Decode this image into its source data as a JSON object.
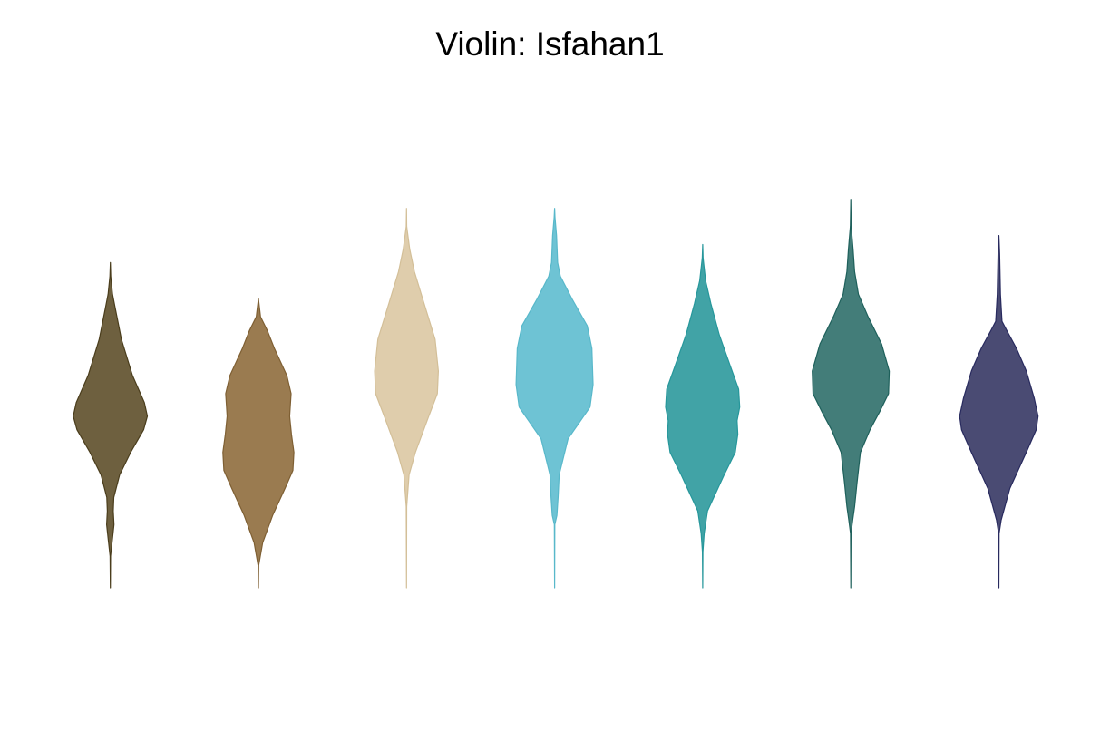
{
  "chart_data": {
    "type": "violin",
    "title": "Violin: Isfahan1",
    "xlabel": "",
    "ylabel": "",
    "axes_visible": false,
    "grid": false,
    "legend": "none",
    "palette_name": "Isfahan1",
    "value_range": [
      0,
      100
    ],
    "series": [
      {
        "color": "#6e603f",
        "stroke": "#4a3d1c",
        "profile": [
          [
            0,
            0
          ],
          [
            7,
            0.006
          ],
          [
            11,
            0.06
          ],
          [
            14,
            0.1
          ],
          [
            17,
            0.08
          ],
          [
            20,
            0.095
          ],
          [
            25,
            0.25
          ],
          [
            30,
            0.55
          ],
          [
            35,
            0.9
          ],
          [
            38,
            1.0
          ],
          [
            41,
            0.92
          ],
          [
            47,
            0.6
          ],
          [
            55,
            0.3
          ],
          [
            62,
            0.13
          ],
          [
            65,
            0.06
          ],
          [
            69,
            0.01
          ],
          [
            72,
            0
          ]
        ],
        "peak_width": 0.5
      },
      {
        "color": "#9a7b50",
        "stroke": "#7e5f33",
        "profile": [
          [
            0,
            0
          ],
          [
            5,
            0.01
          ],
          [
            10,
            0.12
          ],
          [
            16,
            0.4
          ],
          [
            22,
            0.75
          ],
          [
            26,
            0.97
          ],
          [
            30,
            1.0
          ],
          [
            34,
            0.93
          ],
          [
            38,
            0.88
          ],
          [
            43,
            0.92
          ],
          [
            47,
            0.8
          ],
          [
            53,
            0.45
          ],
          [
            57,
            0.25
          ],
          [
            60,
            0.06
          ],
          [
            64,
            0
          ]
        ],
        "peak_width": 0.48
      },
      {
        "color": "#dfcdac",
        "stroke": "#d3bf98",
        "profile": [
          [
            0,
            0
          ],
          [
            18,
            0.006
          ],
          [
            25,
            0.08
          ],
          [
            30,
            0.28
          ],
          [
            38,
            0.7
          ],
          [
            43,
            0.97
          ],
          [
            48,
            1.0
          ],
          [
            55,
            0.9
          ],
          [
            63,
            0.55
          ],
          [
            70,
            0.25
          ],
          [
            75,
            0.1
          ],
          [
            80,
            0.006
          ],
          [
            84,
            0
          ]
        ],
        "peak_width": 0.43
      },
      {
        "color": "#6ec3d4",
        "stroke": "#58b8ca",
        "profile": [
          [
            0,
            0
          ],
          [
            14,
            0.006
          ],
          [
            16,
            0.06
          ],
          [
            20,
            0.09
          ],
          [
            25,
            0.12
          ],
          [
            33,
            0.35
          ],
          [
            40,
            0.92
          ],
          [
            45,
            1.0
          ],
          [
            53,
            0.97
          ],
          [
            58,
            0.85
          ],
          [
            64,
            0.45
          ],
          [
            69,
            0.15
          ],
          [
            72,
            0.08
          ],
          [
            78,
            0.05
          ],
          [
            82,
            0.01
          ],
          [
            84,
            0
          ]
        ],
        "peak_width": 0.52
      },
      {
        "color": "#41a3a6",
        "stroke": "#26979b",
        "profile": [
          [
            0,
            0
          ],
          [
            8,
            0.006
          ],
          [
            12,
            0.04
          ],
          [
            17,
            0.13
          ],
          [
            25,
            0.58
          ],
          [
            30,
            0.88
          ],
          [
            34,
            0.95
          ],
          [
            37,
            0.93
          ],
          [
            40,
            1.0
          ],
          [
            44,
            0.97
          ],
          [
            49,
            0.75
          ],
          [
            56,
            0.45
          ],
          [
            63,
            0.22
          ],
          [
            68,
            0.08
          ],
          [
            73,
            0.01
          ],
          [
            76,
            0
          ]
        ],
        "peak_width": 0.5
      },
      {
        "color": "#437d79",
        "stroke": "#1e605b",
        "profile": [
          [
            0,
            0
          ],
          [
            12,
            0.006
          ],
          [
            15,
            0.05
          ],
          [
            18,
            0.1
          ],
          [
            23,
            0.16
          ],
          [
            30,
            0.25
          ],
          [
            35,
            0.5
          ],
          [
            39,
            0.75
          ],
          [
            43,
            0.98
          ],
          [
            48,
            1.0
          ],
          [
            54,
            0.8
          ],
          [
            60,
            0.45
          ],
          [
            65,
            0.2
          ],
          [
            70,
            0.1
          ],
          [
            75,
            0.06
          ],
          [
            80,
            0.01
          ],
          [
            86,
            0
          ]
        ],
        "peak_width": 0.52
      },
      {
        "color": "#4a4b73",
        "stroke": "#282a5e",
        "profile": [
          [
            0,
            0
          ],
          [
            12,
            0.006
          ],
          [
            15,
            0.06
          ],
          [
            22,
            0.28
          ],
          [
            30,
            0.7
          ],
          [
            35,
            0.95
          ],
          [
            38,
            1.0
          ],
          [
            42,
            0.9
          ],
          [
            48,
            0.7
          ],
          [
            53,
            0.45
          ],
          [
            57,
            0.2
          ],
          [
            59,
            0.08
          ],
          [
            65,
            0.04
          ],
          [
            74,
            0.02
          ],
          [
            78,
            0
          ]
        ],
        "peak_width": 0.53
      }
    ]
  }
}
